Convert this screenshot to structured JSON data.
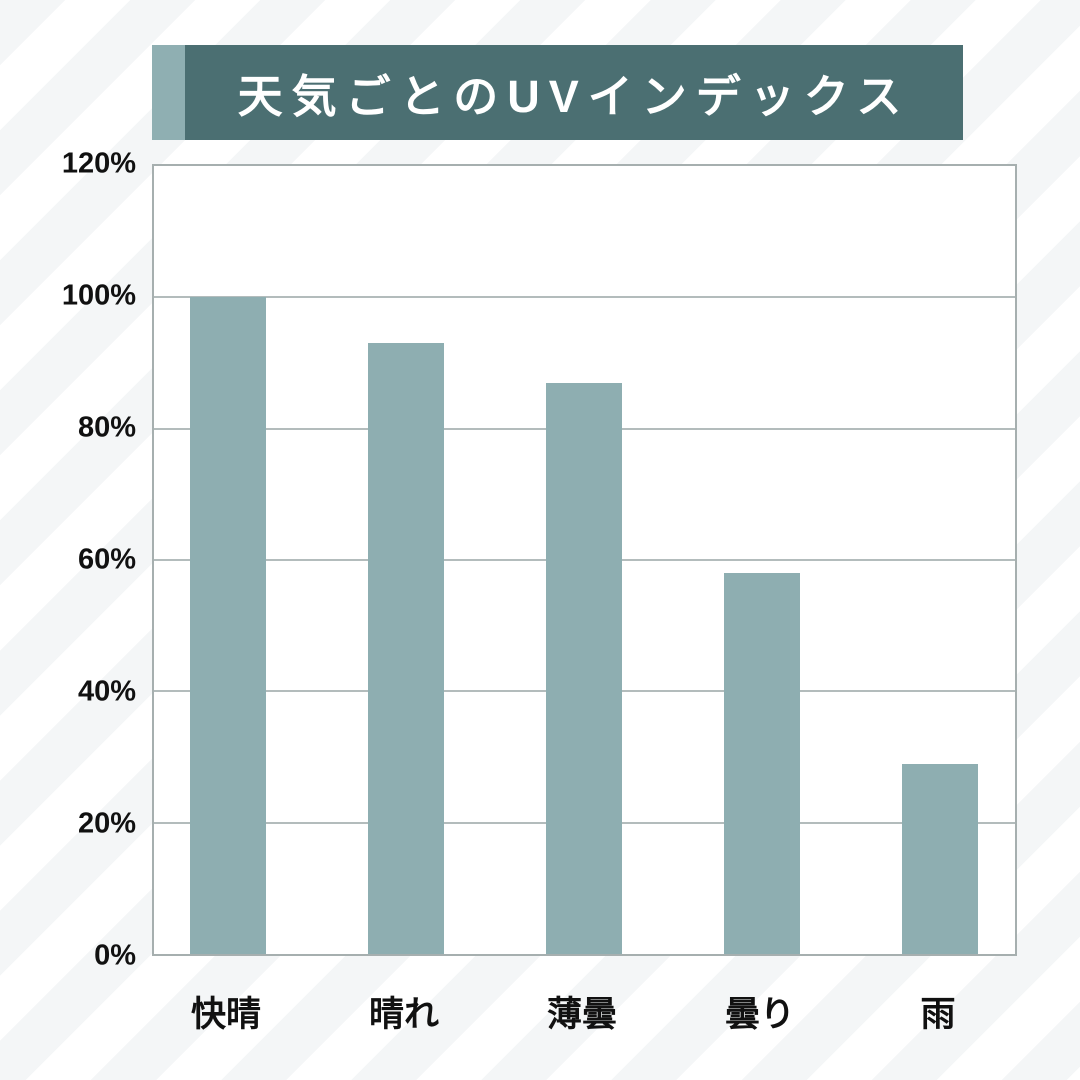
{
  "title": {
    "text": "天気ごとのUVインデックス"
  },
  "colors": {
    "title_bg": "#4b6f72",
    "title_text": "#ffffff",
    "accent": "#8fafb2",
    "bar": "#8eaeb1",
    "gridline": "#b3bcbc",
    "plot_border": "#a6afaf",
    "plot_bg": "#ffffff",
    "page_bg": "#ffffff",
    "stripe": "#f4f6f7",
    "text": "#111111"
  },
  "chart_data": {
    "type": "bar",
    "title": "天気ごとのUVインデックス",
    "categories": [
      "快晴",
      "晴れ",
      "薄曇",
      "曇り",
      "雨"
    ],
    "values": [
      100,
      93,
      87,
      58,
      29
    ],
    "xlabel": "",
    "ylabel": "",
    "ylim": [
      0,
      120
    ],
    "ytick_step": 20,
    "ytick_labels": [
      "0%",
      "20%",
      "40%",
      "60%",
      "80%",
      "100%",
      "120%"
    ],
    "grid": true,
    "legend": false,
    "bar_color": "#8eaeb1",
    "background": "diagonal-stripes"
  }
}
